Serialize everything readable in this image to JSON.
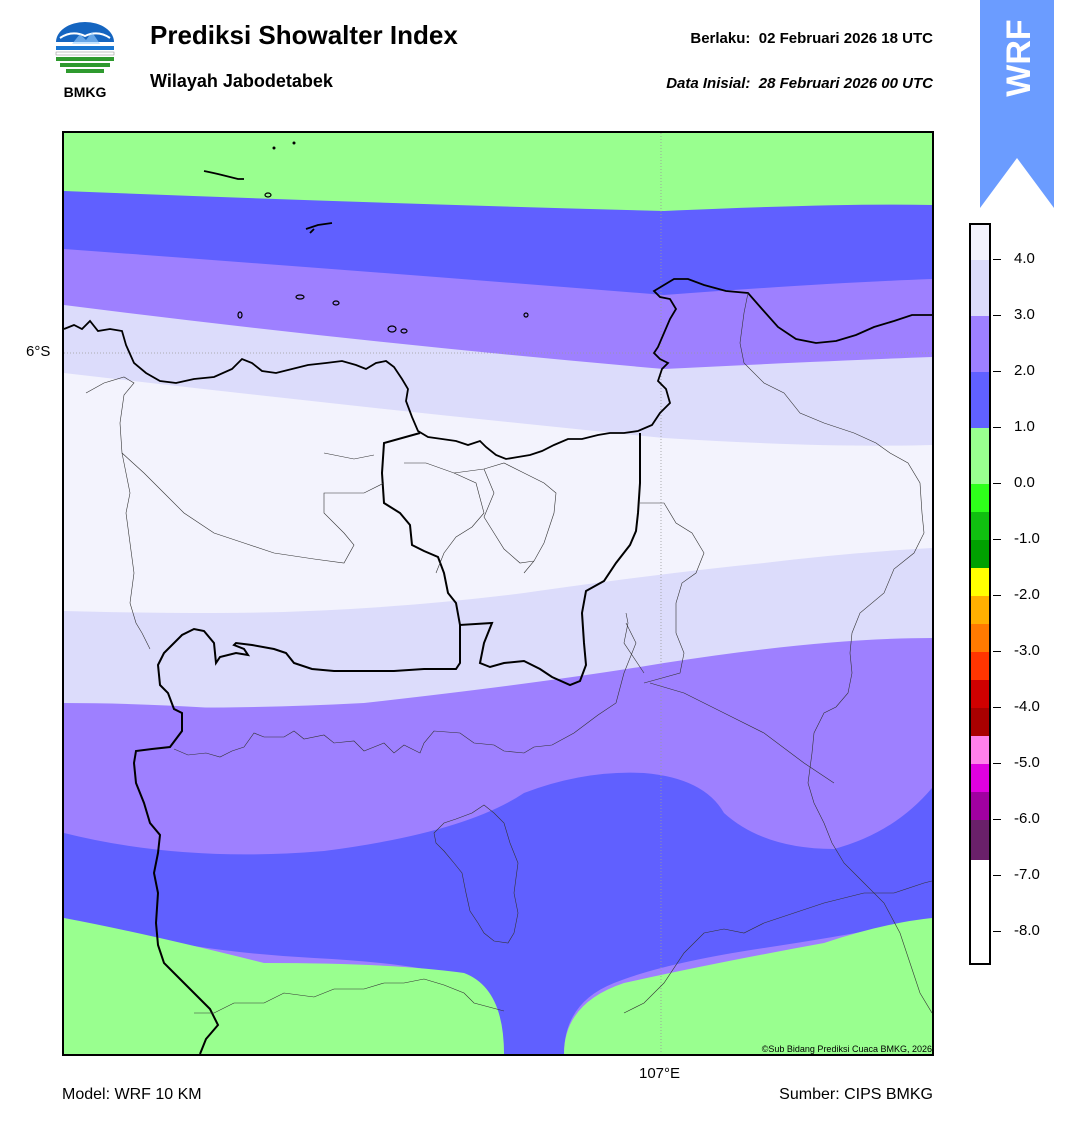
{
  "header": {
    "title": "Prediksi Showalter Index",
    "region": "Wilayah Jabodetabek",
    "valid_label": "Berlaku:",
    "valid_time": "02 Februari 2026 18 UTC",
    "init_label": "Data Inisial:",
    "init_time": "28 Februari 2026 00 UTC"
  },
  "logo": {
    "text": "BMKG",
    "icon": "bmkg-logo-icon"
  },
  "badge": {
    "text": "WRF",
    "color": "#6b9cff",
    "icon": "wrf-arrow-badge-icon"
  },
  "map": {
    "lat_label": "6°S",
    "lon_label": "107°E",
    "copyright": "©Sub Bidang Prediksi Cuaca BMKG, 2026",
    "band_colors": {
      "0_to_1": "#99ff8f",
      "1_to_2": "#6060ff",
      "2_to_3": "#9e80ff",
      "3_to_4": "#dcdcfb",
      "above_4": "#f3f3fd"
    }
  },
  "colorbar": {
    "ticks": [
      "4.0",
      "3.0",
      "2.0",
      "1.0",
      "0.0",
      "-1.0",
      "-2.0",
      "-3.0",
      "-4.0",
      "-5.0",
      "-6.0",
      "-7.0",
      "-8.0"
    ],
    "colors": [
      "#f3f3fd",
      "#dcdcfb",
      "#9e80ff",
      "#6060ff",
      "#99ff8f",
      "#2eff1a",
      "#10c010",
      "#00a000",
      "#ffff00",
      "#ffb000",
      "#ff7a00",
      "#ff3500",
      "#d00000",
      "#a80000",
      "#ff80ea",
      "#e000e0",
      "#a000a0",
      "#6a206a"
    ]
  },
  "footer": {
    "model": "Model: WRF 10 KM",
    "source": "Sumber: CIPS BMKG"
  }
}
